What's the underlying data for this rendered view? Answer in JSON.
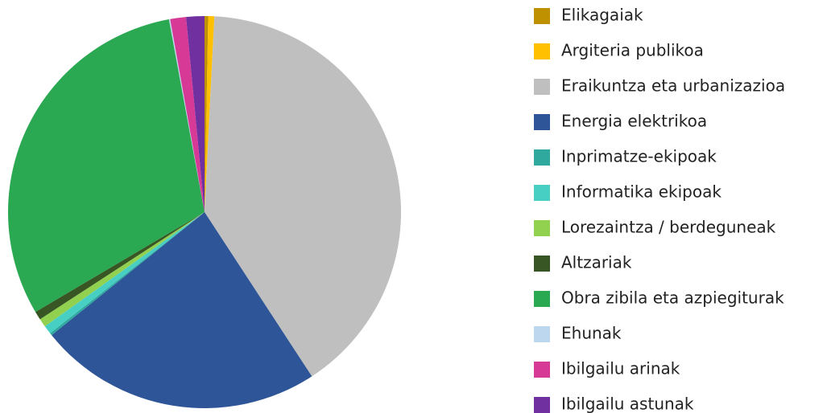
{
  "chart_data": {
    "type": "pie",
    "categories": [
      "Elikagaiak",
      "Argiteria publikoa",
      "Eraikuntza eta urbanizazioa",
      "Energia elektrikoa",
      "Inprimatze-ekipoak",
      "Informatika ekipoak",
      "Lorezaintza / berdeguneak",
      "Altzariak",
      "Obra zibila eta azpiegiturak",
      "Ehunak",
      "Ibilgailu arinak",
      "Ibilgailu astunak"
    ],
    "values": [
      0.3,
      0.5,
      40,
      23.4,
      0.2,
      0.7,
      0.7,
      0.7,
      30.6,
      0.1,
      1.3,
      1.5
    ],
    "colors": [
      "#bf9000",
      "#ffc000",
      "#bfbfbf",
      "#2e5597",
      "#2fa99e",
      "#48cfc3",
      "#92d050",
      "#375623",
      "#2aa952",
      "#bdd7ee",
      "#d63a96",
      "#7030a0"
    ],
    "legend": "right"
  }
}
